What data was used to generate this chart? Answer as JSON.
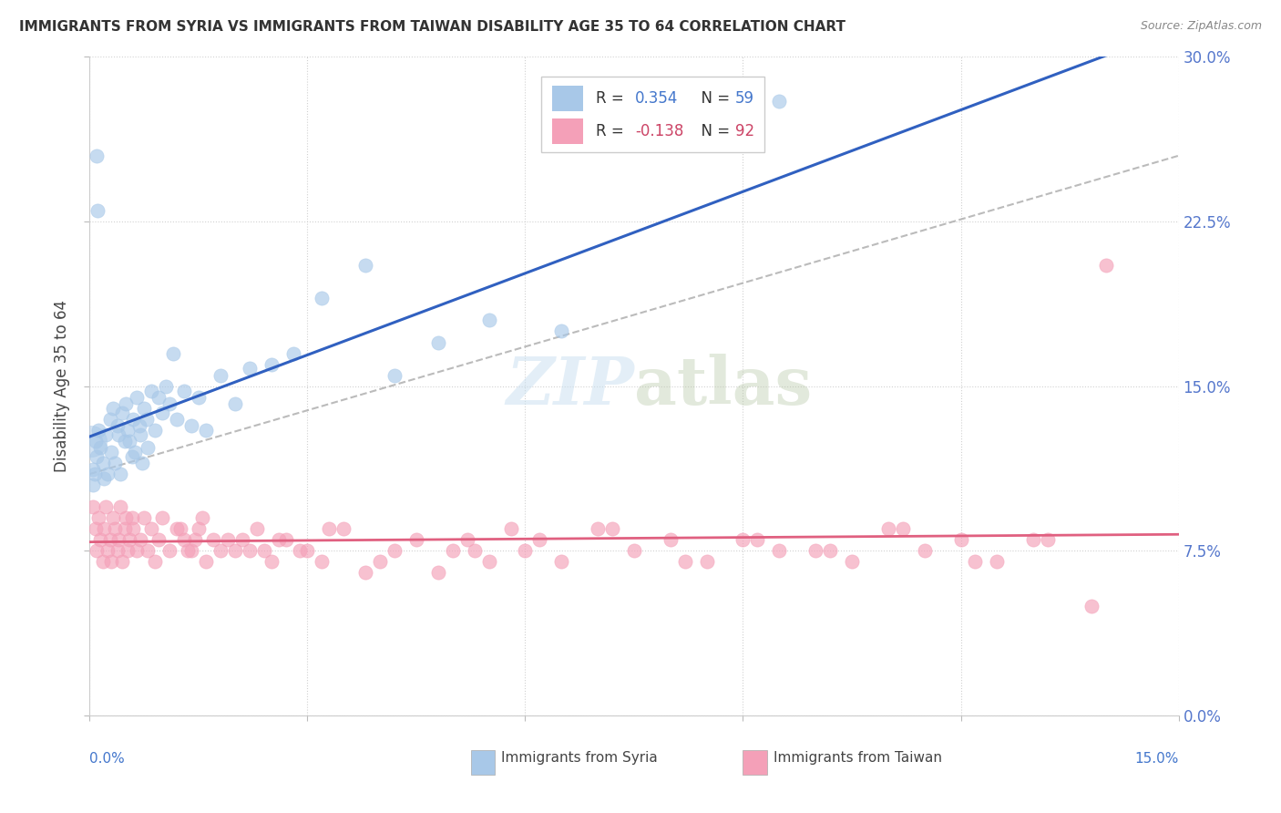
{
  "title": "IMMIGRANTS FROM SYRIA VS IMMIGRANTS FROM TAIWAN DISABILITY AGE 35 TO 64 CORRELATION CHART",
  "source": "Source: ZipAtlas.com",
  "ylabel": "Disability Age 35 to 64",
  "ytick_values": [
    0.0,
    7.5,
    15.0,
    22.5,
    30.0
  ],
  "xlim": [
    0.0,
    15.0
  ],
  "ylim": [
    0.0,
    30.0
  ],
  "color_syria": "#A8C8E8",
  "color_taiwan": "#F4A0B8",
  "color_syria_line": "#3060C0",
  "color_taiwan_line": "#E06080",
  "color_dashed": "#AAAAAA",
  "watermark_color": "#C8DFF0",
  "syria_scatter_x": [
    0.05,
    0.08,
    0.1,
    0.12,
    0.15,
    0.18,
    0.2,
    0.22,
    0.25,
    0.28,
    0.3,
    0.32,
    0.35,
    0.38,
    0.4,
    0.42,
    0.45,
    0.48,
    0.5,
    0.52,
    0.55,
    0.58,
    0.6,
    0.62,
    0.65,
    0.68,
    0.7,
    0.72,
    0.75,
    0.78,
    0.8,
    0.85,
    0.9,
    0.95,
    1.0,
    1.05,
    1.1,
    1.15,
    1.2,
    1.3,
    1.4,
    1.5,
    1.6,
    1.8,
    2.0,
    2.2,
    2.5,
    2.8,
    3.2,
    3.8,
    4.2,
    4.8,
    5.5,
    6.5,
    0.05,
    0.07,
    0.09,
    0.11,
    9.5
  ],
  "syria_scatter_y": [
    11.2,
    12.5,
    11.8,
    13.0,
    12.2,
    11.5,
    10.8,
    12.8,
    11.0,
    13.5,
    12.0,
    14.0,
    11.5,
    13.2,
    12.8,
    11.0,
    13.8,
    12.5,
    14.2,
    13.0,
    12.5,
    11.8,
    13.5,
    12.0,
    14.5,
    13.2,
    12.8,
    11.5,
    14.0,
    13.5,
    12.2,
    14.8,
    13.0,
    14.5,
    13.8,
    15.0,
    14.2,
    16.5,
    13.5,
    14.8,
    13.2,
    14.5,
    13.0,
    15.5,
    14.2,
    15.8,
    16.0,
    16.5,
    19.0,
    20.5,
    15.5,
    17.0,
    18.0,
    17.5,
    10.5,
    11.0,
    25.5,
    23.0,
    28.0
  ],
  "taiwan_scatter_x": [
    0.05,
    0.08,
    0.1,
    0.12,
    0.15,
    0.18,
    0.2,
    0.22,
    0.25,
    0.28,
    0.3,
    0.32,
    0.35,
    0.38,
    0.4,
    0.42,
    0.45,
    0.48,
    0.5,
    0.52,
    0.55,
    0.58,
    0.6,
    0.65,
    0.7,
    0.75,
    0.8,
    0.85,
    0.9,
    0.95,
    1.0,
    1.1,
    1.2,
    1.3,
    1.4,
    1.5,
    1.6,
    1.7,
    1.8,
    1.9,
    2.0,
    2.1,
    2.2,
    2.3,
    2.5,
    2.7,
    2.9,
    3.2,
    3.5,
    3.8,
    4.2,
    4.5,
    4.8,
    5.0,
    5.2,
    5.5,
    5.8,
    6.0,
    6.5,
    7.0,
    7.5,
    8.0,
    8.5,
    9.0,
    9.5,
    10.0,
    10.5,
    11.0,
    11.5,
    12.0,
    12.5,
    13.0,
    1.25,
    1.35,
    1.45,
    1.55,
    2.4,
    2.6,
    3.0,
    3.3,
    4.0,
    5.3,
    6.2,
    7.2,
    8.2,
    9.2,
    10.2,
    11.2,
    12.2,
    13.2,
    14.0,
    13.8
  ],
  "taiwan_scatter_y": [
    9.5,
    8.5,
    7.5,
    9.0,
    8.0,
    7.0,
    8.5,
    9.5,
    7.5,
    8.0,
    7.0,
    9.0,
    8.5,
    7.5,
    8.0,
    9.5,
    7.0,
    8.5,
    9.0,
    7.5,
    8.0,
    9.0,
    8.5,
    7.5,
    8.0,
    9.0,
    7.5,
    8.5,
    7.0,
    8.0,
    9.0,
    7.5,
    8.5,
    8.0,
    7.5,
    8.5,
    7.0,
    8.0,
    7.5,
    8.0,
    7.5,
    8.0,
    7.5,
    8.5,
    7.0,
    8.0,
    7.5,
    7.0,
    8.5,
    6.5,
    7.5,
    8.0,
    6.5,
    7.5,
    8.0,
    7.0,
    8.5,
    7.5,
    7.0,
    8.5,
    7.5,
    8.0,
    7.0,
    8.0,
    7.5,
    7.5,
    7.0,
    8.5,
    7.5,
    8.0,
    7.0,
    8.0,
    8.5,
    7.5,
    8.0,
    9.0,
    7.5,
    8.0,
    7.5,
    8.5,
    7.0,
    7.5,
    8.0,
    8.5,
    7.0,
    8.0,
    7.5,
    8.5,
    7.0,
    8.0,
    20.5,
    5.0
  ],
  "dashed_line_x": [
    0.0,
    15.0
  ],
  "dashed_line_y": [
    11.0,
    25.5
  ]
}
